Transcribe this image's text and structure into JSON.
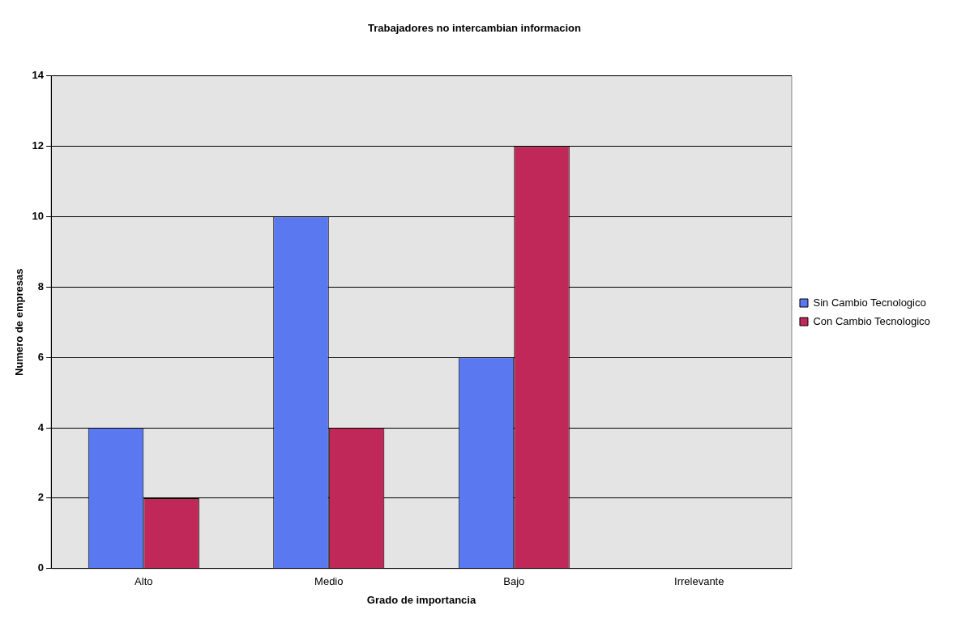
{
  "chart_data": {
    "type": "bar",
    "title": "Trabajadores no intercambian informacion",
    "xlabel": "Grado de importancia",
    "ylabel": "Numero de empresas",
    "categories": [
      "Alto",
      "Medio",
      "Bajo",
      "Irrelevante"
    ],
    "series": [
      {
        "name": "Sin Cambio Tecnologico",
        "color": "#5a78f0",
        "values": [
          4,
          10,
          6,
          0
        ]
      },
      {
        "name": "Con Cambio Tecnologico",
        "color": "#c0285a",
        "values": [
          2,
          4,
          12,
          0
        ]
      }
    ],
    "ylim": [
      0,
      14
    ],
    "yticks": [
      0,
      2,
      4,
      6,
      8,
      10,
      12,
      14
    ],
    "grid": "y",
    "legend": "right"
  }
}
